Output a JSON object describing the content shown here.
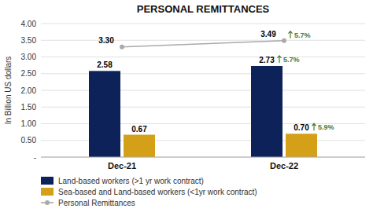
{
  "chart_data": {
    "type": "bar",
    "title": "PERSONAL REMITTANCES",
    "ylabel": "In Billion US dollars",
    "categories": [
      "Dec-21",
      "Dec-22"
    ],
    "series": [
      {
        "name": "Land-based workers (>1 yr work contract)",
        "type": "bar",
        "color": "#0d2259",
        "values": [
          2.58,
          2.73
        ],
        "value_labels": [
          "2.58",
          "2.73"
        ],
        "growth_labels": [
          null,
          "5.7%"
        ]
      },
      {
        "name": "Sea-based and Land-based workers (<1yr work contract)",
        "type": "bar",
        "color": "#d4a017",
        "values": [
          0.67,
          0.7
        ],
        "value_labels": [
          "0.67",
          "0.70"
        ],
        "growth_labels": [
          null,
          "5.9%"
        ]
      },
      {
        "name": "Personal Remittances",
        "type": "line",
        "color": "#aaaaaa",
        "marker": "circle",
        "values": [
          3.3,
          3.49
        ],
        "value_labels": [
          "3.30",
          "3.49"
        ],
        "growth_labels": [
          null,
          "5.7%"
        ]
      }
    ],
    "growth_color": "#4a7c2f",
    "ylim": [
      0,
      4.0
    ],
    "yticks": [
      {
        "value": 0.0,
        "label": "-"
      },
      {
        "value": 0.5,
        "label": "0.50"
      },
      {
        "value": 1.0,
        "label": "1.00"
      },
      {
        "value": 1.5,
        "label": "1.50"
      },
      {
        "value": 2.0,
        "label": "2.00"
      },
      {
        "value": 2.5,
        "label": "2.50"
      },
      {
        "value": 3.0,
        "label": "3.00"
      },
      {
        "value": 3.5,
        "label": "3.50"
      },
      {
        "value": 4.0,
        "label": "4.00"
      }
    ],
    "grid": true,
    "legend": "bottom-left",
    "data_labels": true
  }
}
